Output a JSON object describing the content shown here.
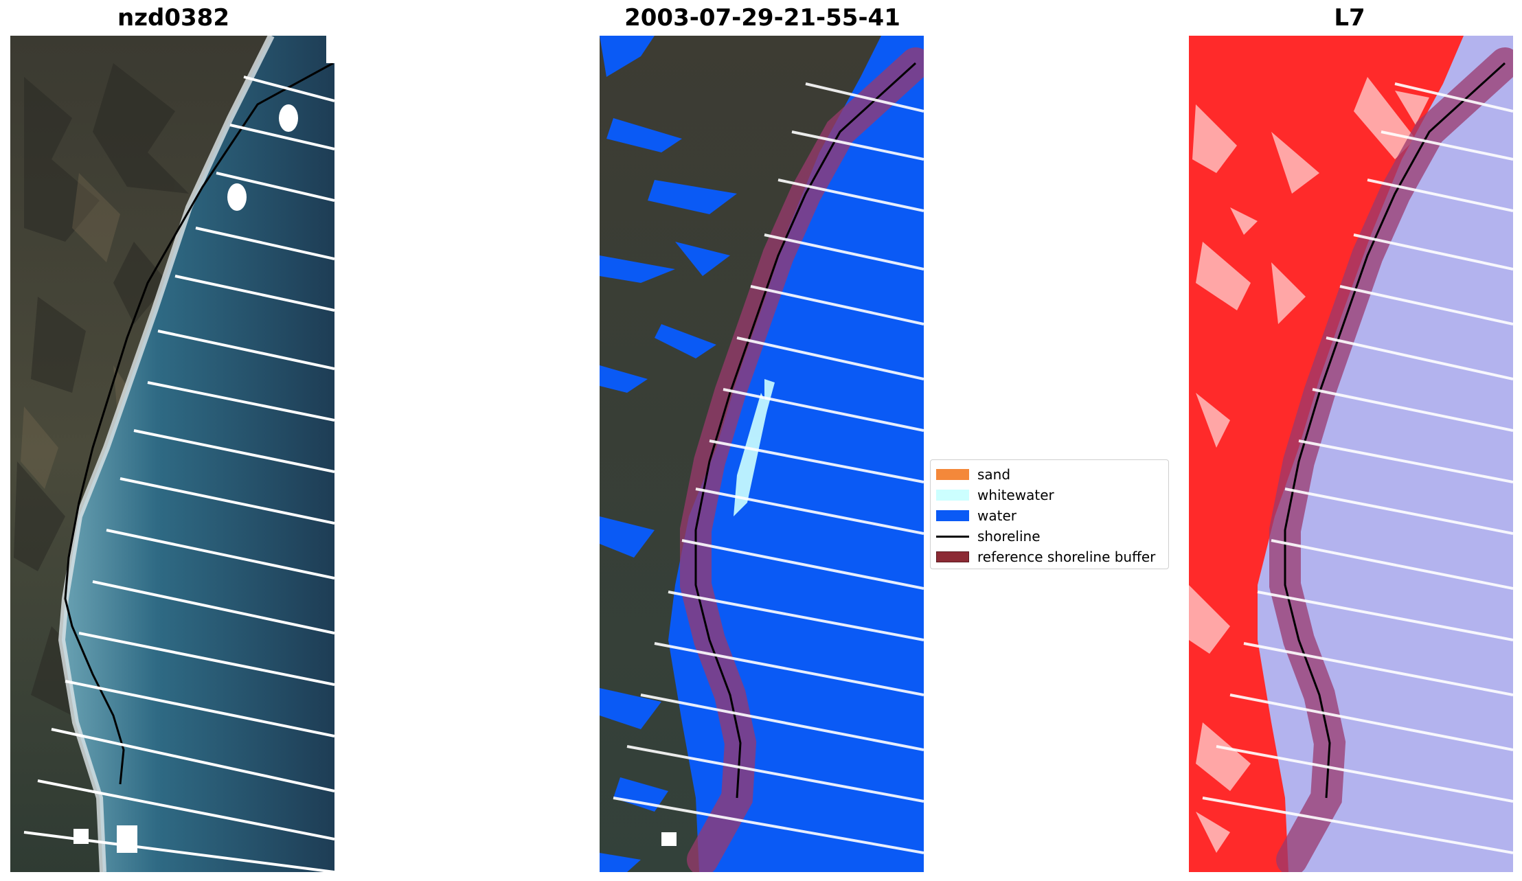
{
  "panels": {
    "left": {
      "title": "nzd0382"
    },
    "middle": {
      "title": "2003-07-29-21-55-41"
    },
    "right": {
      "title": "L7"
    }
  },
  "legend": {
    "items": [
      {
        "label": "sand",
        "color": "#f4883a"
      },
      {
        "label": "whitewater",
        "color": "#ccffff"
      },
      {
        "label": "water",
        "color": "#0a5af5"
      },
      {
        "label": "shoreline",
        "color": "#000000"
      },
      {
        "label": "reference shoreline buffer",
        "color": "#8c2a34"
      }
    ]
  },
  "colors": {
    "land_rgb": "#3b3f36",
    "sea_rgb": "#2b5d74",
    "water_class": "#0a5af5",
    "ndwi_land": "#ff2020",
    "ndwi_water": "#b3b3ee",
    "buffer": "#9a3a6e"
  }
}
